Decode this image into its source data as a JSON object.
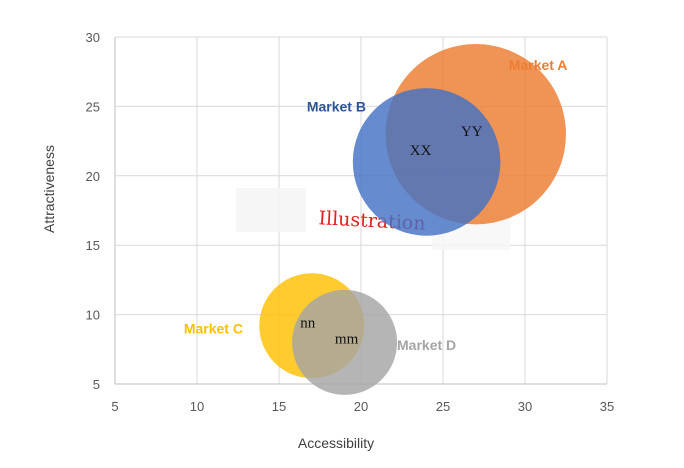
{
  "chart_data": {
    "type": "bubble",
    "xlabel": "Accessibility",
    "ylabel": "Attractiveness",
    "xlim": [
      5,
      35
    ],
    "ylim": [
      5,
      30
    ],
    "x_ticks": [
      5,
      10,
      15,
      20,
      25,
      30,
      35
    ],
    "y_ticks": [
      5,
      10,
      15,
      20,
      25,
      30
    ],
    "grid": true,
    "bubbles": [
      {
        "market": "Market A",
        "label": "YY",
        "x": 27,
        "y": 23,
        "radius": 5.5,
        "color": "#ED7D31"
      },
      {
        "market": "Market B",
        "label": "XX",
        "x": 24,
        "y": 21,
        "radius": 4.5,
        "color": "#4472C4"
      },
      {
        "market": "Market C",
        "label": "nn",
        "x": 17,
        "y": 9.2,
        "radius": 3.2,
        "color": "#FFC000"
      },
      {
        "market": "Market D",
        "label": "mm",
        "x": 19,
        "y": 8,
        "radius": 3.2,
        "color": "#A5A5A5"
      }
    ],
    "annotations": [
      {
        "text": "Market A",
        "x": 30.8,
        "y": 28,
        "color": "#ED7D31"
      },
      {
        "text": "Market B",
        "x": 18.5,
        "y": 25,
        "color": "#2E5597"
      },
      {
        "text": "Market C",
        "x": 11,
        "y": 9,
        "color": "#FFC000"
      },
      {
        "text": "Market D",
        "x": 24,
        "y": 7.8,
        "color": "#A5A5A5"
      }
    ]
  },
  "watermark": {
    "text": "Illustration"
  }
}
